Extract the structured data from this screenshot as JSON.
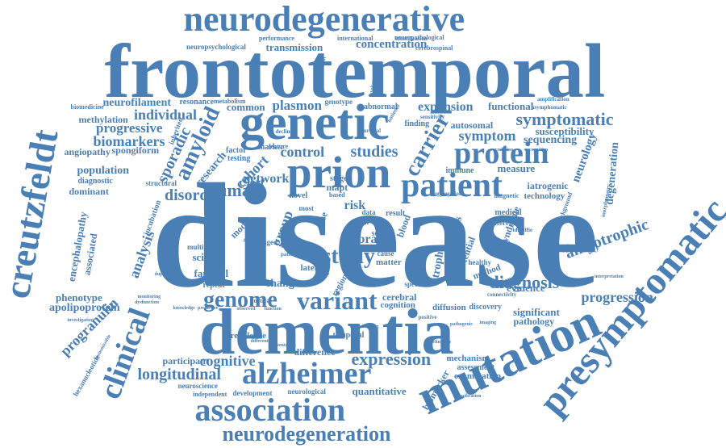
{
  "colors": {
    "word": "#4a7fb5",
    "background": "#ffffff"
  },
  "words": [
    {
      "id": "disease",
      "text": "disease"
    },
    {
      "id": "frontotemporal",
      "text": "frontotemporal"
    },
    {
      "id": "dementia",
      "text": "dementia"
    },
    {
      "id": "neurodegenerative",
      "text": "neurodegenerative"
    },
    {
      "id": "genetic",
      "text": "genetic"
    },
    {
      "id": "mutation",
      "text": "mutation"
    },
    {
      "id": "presymptomatic",
      "text": "presymptomatic"
    },
    {
      "id": "creutzfeldt",
      "text": "creutzfeldt"
    },
    {
      "id": "prion",
      "text": "prion"
    },
    {
      "id": "patient",
      "text": "patient"
    },
    {
      "id": "association",
      "text": "association"
    },
    {
      "id": "alzheimer",
      "text": "alzheimer"
    },
    {
      "id": "protein",
      "text": "protein"
    },
    {
      "id": "clinical",
      "text": "clinical"
    },
    {
      "id": "variant",
      "text": "variant"
    },
    {
      "id": "genome",
      "text": "genome"
    },
    {
      "id": "neurodegeneration",
      "text": "neurodegeneration"
    },
    {
      "id": "symptomatic",
      "text": "symptomatic"
    },
    {
      "id": "amyotrophic",
      "text": "amyotrophic"
    },
    {
      "id": "study",
      "text": "study"
    },
    {
      "id": "human",
      "text": "human"
    },
    {
      "id": "disorder",
      "text": "disorder"
    },
    {
      "id": "carrier",
      "text": "carrier"
    },
    {
      "id": "amyloid",
      "text": "amyloid"
    },
    {
      "id": "sporadic",
      "text": "sporadic"
    },
    {
      "id": "expression",
      "text": "expression"
    },
    {
      "id": "longitudinal",
      "text": "longitudinal"
    },
    {
      "id": "cognitive",
      "text": "cognitive"
    },
    {
      "id": "diagnosis",
      "text": "diagnosis"
    },
    {
      "id": "progression",
      "text": "progression"
    },
    {
      "id": "biomarkers",
      "text": "biomarkers"
    },
    {
      "id": "progressive",
      "text": "progressive"
    },
    {
      "id": "individual",
      "text": "individual"
    },
    {
      "id": "neurofilament",
      "text": "neurofilament"
    },
    {
      "id": "control",
      "text": "control"
    },
    {
      "id": "studies",
      "text": "studies"
    },
    {
      "id": "symptom",
      "text": "symptom"
    },
    {
      "id": "expansion",
      "text": "expansion"
    },
    {
      "id": "concentration",
      "text": "concentration"
    },
    {
      "id": "plasmon",
      "text": "plasmon"
    },
    {
      "id": "analysis",
      "text": "analysis"
    },
    {
      "id": "cohort",
      "text": "cohort"
    },
    {
      "id": "c9orf",
      "text": "c9orf"
    },
    {
      "id": "network",
      "text": "network"
    },
    {
      "id": "group",
      "text": "group"
    },
    {
      "id": "risk",
      "text": "risk"
    },
    {
      "id": "brain",
      "text": "brain"
    },
    {
      "id": "change",
      "text": "change"
    },
    {
      "id": "familial",
      "text": "familial"
    },
    {
      "id": "science",
      "text": "science"
    },
    {
      "id": "progranulin",
      "text": "progranulin"
    },
    {
      "id": "phenotype",
      "text": "phenotype"
    },
    {
      "id": "apolipoprotein",
      "text": "apolipoprotein"
    },
    {
      "id": "population",
      "text": "population"
    },
    {
      "id": "dominant",
      "text": "dominant"
    },
    {
      "id": "angiopathy",
      "text": "angiopathy"
    },
    {
      "id": "spongiform",
      "text": "spongiform"
    },
    {
      "id": "methylation",
      "text": "methylation"
    },
    {
      "id": "transmission",
      "text": "transmission"
    },
    {
      "id": "neurology",
      "text": "neurology"
    },
    {
      "id": "degeneration",
      "text": "degeneration"
    },
    {
      "id": "sequencing",
      "text": "sequencing"
    },
    {
      "id": "susceptibility",
      "text": "susceptibility"
    },
    {
      "id": "functional",
      "text": "functional"
    },
    {
      "id": "measure",
      "text": "measure"
    },
    {
      "id": "evidence",
      "text": "evidence"
    },
    {
      "id": "significant",
      "text": "significant"
    },
    {
      "id": "pathology",
      "text": "pathology"
    },
    {
      "id": "cerebral",
      "text": "cerebral"
    },
    {
      "id": "cognition",
      "text": "cognition"
    },
    {
      "id": "quantitative",
      "text": "quantitative"
    },
    {
      "id": "participant",
      "text": "participant"
    },
    {
      "id": "prevalence",
      "text": "prevalence"
    },
    {
      "id": "mechanism",
      "text": "mechanism"
    },
    {
      "id": "difference",
      "text": "difference"
    },
    {
      "id": "biomarker",
      "text": "biomarker"
    },
    {
      "id": "examination",
      "text": "examination"
    },
    {
      "id": "assessment",
      "text": "assessment"
    },
    {
      "id": "diffusion",
      "text": "diffusion"
    },
    {
      "id": "discovery",
      "text": "discovery"
    },
    {
      "id": "temporal",
      "text": "temporal"
    },
    {
      "id": "sclerosis",
      "text": "sclerosis"
    },
    {
      "id": "atrophy",
      "text": "atrophy"
    },
    {
      "id": "potential",
      "text": "potential"
    },
    {
      "id": "method",
      "text": "method"
    },
    {
      "id": "syndrome",
      "text": "syndrome"
    },
    {
      "id": "autosomal",
      "text": "autosomal"
    },
    {
      "id": "immune",
      "text": "immune"
    },
    {
      "id": "iatrogenic",
      "text": "iatrogenic"
    },
    {
      "id": "technology",
      "text": "technology"
    },
    {
      "id": "phenocopy",
      "text": "phenocopy"
    },
    {
      "id": "medical",
      "text": "medical"
    },
    {
      "id": "different",
      "text": "different"
    },
    {
      "id": "lateral",
      "text": "lateral"
    },
    {
      "id": "matter",
      "text": "matter"
    },
    {
      "id": "cause",
      "text": "cause"
    },
    {
      "id": "scale",
      "text": "scale"
    },
    {
      "id": "result",
      "text": "result"
    },
    {
      "id": "blood",
      "text": "blood"
    },
    {
      "id": "mapt",
      "text": "mapt"
    },
    {
      "id": "novel",
      "text": "novel"
    },
    {
      "id": "stage",
      "text": "stage"
    },
    {
      "id": "data",
      "text": "data"
    },
    {
      "id": "year",
      "text": "year"
    },
    {
      "id": "marker",
      "text": "marker"
    },
    {
      "id": "factor",
      "text": "factor"
    },
    {
      "id": "research",
      "text": "research"
    },
    {
      "id": "testing",
      "text": "testing"
    },
    {
      "id": "model",
      "text": "model"
    },
    {
      "id": "score",
      "text": "score"
    },
    {
      "id": "aged",
      "text": "aged"
    },
    {
      "id": "repeat",
      "text": "repeat"
    },
    {
      "id": "multiple",
      "text": "multiple"
    },
    {
      "id": "incubation",
      "text": "incubation"
    },
    {
      "id": "encephalopathy",
      "text": "encephalopathy"
    },
    {
      "id": "associated",
      "text": "associated"
    },
    {
      "id": "diagnostic",
      "text": "diagnostic"
    },
    {
      "id": "inherited",
      "text": "inherited"
    },
    {
      "id": "structural",
      "text": "structural"
    },
    {
      "id": "common",
      "text": "common"
    },
    {
      "id": "resonance",
      "text": "resonance"
    },
    {
      "id": "genotype",
      "text": "genotype"
    },
    {
      "id": "abnormal",
      "text": "abnormal"
    },
    {
      "id": "finding",
      "text": "finding"
    },
    {
      "id": "performance",
      "text": "performance"
    },
    {
      "id": "international",
      "text": "international"
    },
    {
      "id": "neuropathological",
      "text": "neuropathological"
    },
    {
      "id": "neuropsychological",
      "text": "neuropsychological"
    },
    {
      "id": "cerebrospinal",
      "text": "cerebrospinal"
    },
    {
      "id": "impairment",
      "text": "impairment"
    },
    {
      "id": "hexanucleotide",
      "text": "hexanucleotide"
    },
    {
      "id": "neuroscience",
      "text": "neuroscience"
    },
    {
      "id": "development",
      "text": "development"
    },
    {
      "id": "neurological",
      "text": "neurological"
    },
    {
      "id": "independent",
      "text": "independent"
    },
    {
      "id": "biomedicine",
      "text": "biomedicine"
    },
    {
      "id": "metabolism",
      "text": "metabolism"
    },
    {
      "id": "amplification",
      "text": "amplification"
    },
    {
      "id": "asymphomatic",
      "text": "asymphomatic"
    },
    {
      "id": "identification",
      "text": "identification"
    },
    {
      "id": "feature",
      "text": "feature"
    },
    {
      "id": "decline",
      "text": "decline"
    },
    {
      "id": "survival",
      "text": "survival"
    },
    {
      "id": "healthy",
      "text": "healthy"
    },
    {
      "id": "cortical",
      "text": "cortical"
    },
    {
      "id": "background",
      "text": "background"
    },
    {
      "id": "morphometry",
      "text": "morphometry"
    },
    {
      "id": "identifie",
      "text": "identifie"
    },
    {
      "id": "whole",
      "text": "whole"
    },
    {
      "id": "duplication",
      "text": "duplication"
    },
    {
      "id": "predictive",
      "text": "predictive"
    },
    {
      "id": "knowledge",
      "text": "knowledge"
    },
    {
      "id": "observed",
      "text": "observed"
    },
    {
      "id": "function",
      "text": "function"
    },
    {
      "id": "sensitivity",
      "text": "sensitivity"
    },
    {
      "id": "connectivity",
      "text": "connectivity"
    },
    {
      "id": "positive",
      "text": "positive"
    },
    {
      "id": "specific",
      "text": "specific"
    },
    {
      "id": "sectional",
      "text": "sectional"
    },
    {
      "id": "classification",
      "text": "classification"
    },
    {
      "id": "monitoring",
      "text": "monitoring"
    },
    {
      "id": "dysfunction",
      "text": "dysfunction"
    },
    {
      "id": "investigation",
      "text": "investigation"
    },
    {
      "id": "transmissible",
      "text": "transmissible"
    },
    {
      "id": "prp",
      "text": "prp"
    },
    {
      "id": "region",
      "text": "region"
    },
    {
      "id": "most",
      "text": "most"
    },
    {
      "id": "case",
      "text": "case"
    },
    {
      "id": "aggregation",
      "text": "aggregation"
    },
    {
      "id": "correlation",
      "text": "correlation"
    },
    {
      "id": "interpretation",
      "text": "interpretation"
    },
    {
      "id": "recognition",
      "text": "recognition"
    },
    {
      "id": "involvement",
      "text": "involvement"
    },
    {
      "id": "national",
      "text": "national"
    },
    {
      "id": "family",
      "text": "family"
    },
    {
      "id": "based",
      "text": "based"
    },
    {
      "id": "patients",
      "text": "patients"
    },
    {
      "id": "pathogenic",
      "text": "pathogenic"
    },
    {
      "id": "magnetic",
      "text": "magnetic"
    },
    {
      "id": "neuroimaging",
      "text": "neuroimaging"
    },
    {
      "id": "imaging",
      "text": "imaging"
    },
    {
      "id": "clinically",
      "text": "clinically"
    },
    {
      "id": "presentation",
      "text": "presentation"
    },
    {
      "id": "differential",
      "text": "differential"
    }
  ]
}
